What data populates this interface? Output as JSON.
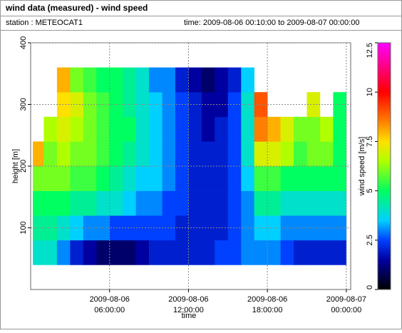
{
  "header": {
    "title": "wind data (measured) - wind speed",
    "station": "station : METEOCAT1",
    "period": "time: 2009-08-06 00:10:00 to 2009-08-07 00:00:00"
  },
  "chart_data": {
    "type": "heatmap",
    "x_label": "time",
    "y_label": "height [m]",
    "colorbar_label": "wind speed [m/s]",
    "x": [
      "2009-08-06 00:10:00",
      "2009-08-06 01:00:00",
      "2009-08-06 02:00:00",
      "2009-08-06 03:00:00",
      "2009-08-06 04:00:00",
      "2009-08-06 05:00:00",
      "2009-08-06 06:00:00",
      "2009-08-06 07:00:00",
      "2009-08-06 08:00:00",
      "2009-08-06 09:00:00",
      "2009-08-06 10:00:00",
      "2009-08-06 11:00:00",
      "2009-08-06 12:00:00",
      "2009-08-06 13:00:00",
      "2009-08-06 14:00:00",
      "2009-08-06 15:00:00",
      "2009-08-06 16:00:00",
      "2009-08-06 17:00:00",
      "2009-08-06 18:00:00",
      "2009-08-06 19:00:00",
      "2009-08-06 20:00:00",
      "2009-08-06 21:00:00",
      "2009-08-06 22:00:00",
      "2009-08-06 23:00:00"
    ],
    "x_end": "2009-08-07 00:00:00",
    "heights": [
      40,
      80,
      120,
      160,
      200,
      240,
      280,
      320,
      360
    ],
    "values": [
      [
        4,
        4,
        3,
        2,
        1.5,
        1,
        1,
        1,
        1.5,
        2,
        2,
        2,
        2,
        2,
        2.5,
        2.5,
        3,
        3,
        3,
        2.5,
        2,
        2,
        2,
        2
      ],
      [
        4.5,
        4.5,
        4,
        3.5,
        3,
        3,
        2.5,
        2.5,
        2.5,
        2.5,
        2.5,
        2,
        2,
        2,
        2,
        2.5,
        3,
        3.5,
        3.5,
        3,
        3,
        3,
        3,
        3
      ],
      [
        5,
        5,
        5,
        4.5,
        4.5,
        4,
        4,
        3.5,
        3,
        3,
        2.5,
        2.5,
        2,
        2,
        2,
        2.5,
        3,
        4.5,
        4.5,
        4,
        4,
        4,
        4,
        4
      ],
      [
        6,
        6,
        6,
        5.5,
        5.5,
        5,
        4.5,
        4,
        3.5,
        3.5,
        3,
        2.5,
        2,
        2,
        2,
        2.5,
        3.5,
        5.5,
        5.5,
        5,
        5,
        5,
        5,
        5
      ],
      [
        8,
        6,
        6.5,
        6,
        6,
        5.5,
        5,
        4.5,
        4,
        3.5,
        3,
        2.5,
        2,
        2,
        2,
        2.5,
        4,
        7,
        7,
        6.5,
        5.5,
        6,
        6,
        5
      ],
      [
        null,
        6.5,
        7,
        6.5,
        6,
        5.5,
        5,
        5,
        4,
        3.5,
        3,
        2.5,
        2,
        1.5,
        2,
        2.5,
        4,
        8.5,
        8,
        7,
        6,
        6,
        6.5,
        5
      ],
      [
        null,
        null,
        7.5,
        7,
        6,
        5.5,
        5,
        4.5,
        4,
        3.5,
        3,
        2.5,
        2,
        1.5,
        1.5,
        2.5,
        4,
        9,
        null,
        null,
        null,
        7,
        null,
        5
      ],
      [
        null,
        null,
        8,
        6,
        5.5,
        5,
        5,
        4.5,
        4,
        3,
        3,
        2,
        1.5,
        1,
        1.5,
        2,
        3.5,
        null,
        null,
        null,
        null,
        null,
        null,
        null
      ]
    ],
    "xlim": [
      "2009-08-06 00:00:00",
      "2009-08-07 00:20:00"
    ],
    "xticks": [
      "2009-08-06 06:00:00",
      "2009-08-06 12:00:00",
      "2009-08-06 18:00:00",
      "2009-08-07 00:00:00"
    ],
    "ylim": [
      0,
      400
    ],
    "yticks": [
      100,
      200,
      300,
      400
    ],
    "clim": [
      0,
      12.5
    ],
    "cticks": [
      0,
      2.5,
      5,
      7.5,
      10,
      12.5
    ],
    "colorscale": [
      [
        0,
        "#000000"
      ],
      [
        1.5,
        "#0000a0"
      ],
      [
        2.5,
        "#0040ff"
      ],
      [
        3.5,
        "#00d0ff"
      ],
      [
        5,
        "#00ff60"
      ],
      [
        6.5,
        "#b0ff00"
      ],
      [
        7.5,
        "#ffe000"
      ],
      [
        8.5,
        "#ff8000"
      ],
      [
        10,
        "#ff0000"
      ],
      [
        12.5,
        "#ff00ff"
      ]
    ],
    "grid": true
  }
}
